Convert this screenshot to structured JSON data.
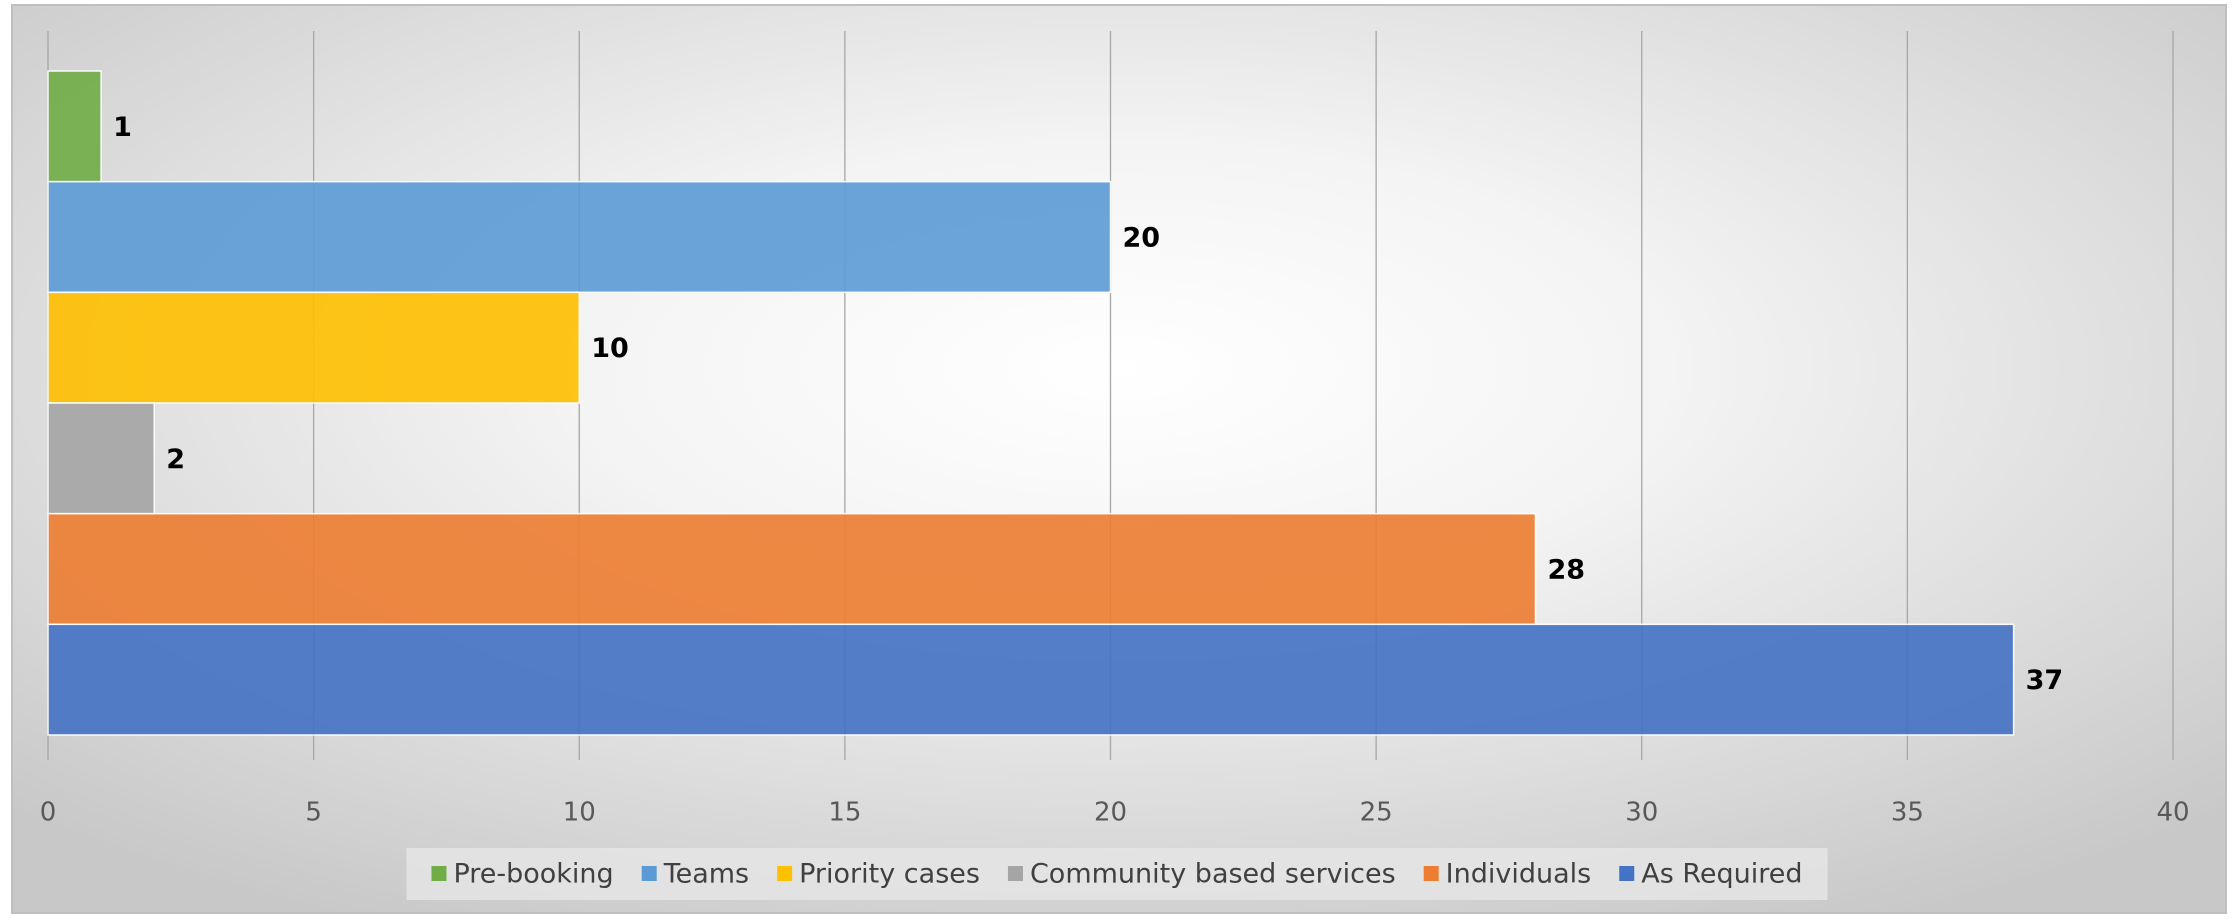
{
  "chart_data": {
    "type": "hbar",
    "series": [
      {
        "name": "Pre-booking",
        "color": "#70ad47",
        "values": [
          1
        ]
      },
      {
        "name": "Teams",
        "color": "#5b9bd5",
        "values": [
          20
        ]
      },
      {
        "name": "Priority cases",
        "color": "#ffc000",
        "values": [
          10
        ]
      },
      {
        "name": "Community based services",
        "color": "#a5a5a5",
        "values": [
          2
        ]
      },
      {
        "name": "Individuals",
        "color": "#ed7d31",
        "values": [
          28
        ]
      },
      {
        "name": "As Required",
        "color": "#4472c4",
        "values": [
          37
        ]
      }
    ],
    "xlim": [
      0,
      40
    ],
    "xticks": [
      0,
      5,
      10,
      15,
      20,
      25,
      30,
      35,
      40
    ],
    "grid": true,
    "legend": "bottom"
  }
}
